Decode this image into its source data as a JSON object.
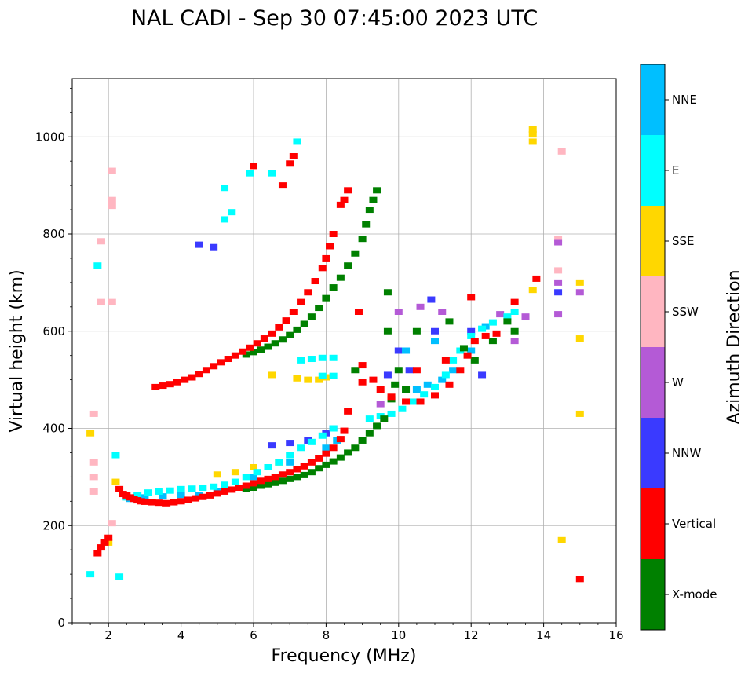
{
  "chart_data": {
    "type": "scatter",
    "title": "NAL CADI - Sep 30 07:45:00 2023 UTC",
    "xlabel": "Frequency (MHz)",
    "ylabel": "Virtual height (km)",
    "xlim": [
      1,
      16
    ],
    "ylim": [
      0,
      1120
    ],
    "xticks": [
      2,
      4,
      6,
      8,
      10,
      12,
      14,
      16
    ],
    "yticks": [
      0,
      200,
      400,
      600,
      800,
      1000
    ],
    "grid": true,
    "colorbar": {
      "label": "Azimuth Direction",
      "categories": [
        {
          "name": "X-mode",
          "color": "#008000"
        },
        {
          "name": "Vertical",
          "color": "#ff0000"
        },
        {
          "name": "NNW",
          "color": "#3a3aff"
        },
        {
          "name": "W",
          "color": "#b45ad6"
        },
        {
          "name": "SSW",
          "color": "#ffb6c1"
        },
        {
          "name": "SSE",
          "color": "#ffd700"
        },
        {
          "name": "E",
          "color": "#00ffff"
        },
        {
          "name": "NNE",
          "color": "#00bfff"
        }
      ]
    },
    "series": [
      {
        "name": "Vertical",
        "points": [
          [
            2.3,
            275
          ],
          [
            2.4,
            265
          ],
          [
            2.5,
            262
          ],
          [
            2.6,
            258
          ],
          [
            2.7,
            255
          ],
          [
            2.8,
            252
          ],
          [
            2.9,
            250
          ],
          [
            3.0,
            249
          ],
          [
            3.2,
            248
          ],
          [
            3.4,
            247
          ],
          [
            3.6,
            246
          ],
          [
            3.8,
            248
          ],
          [
            4.0,
            250
          ],
          [
            4.2,
            253
          ],
          [
            4.4,
            256
          ],
          [
            4.6,
            259
          ],
          [
            4.8,
            262
          ],
          [
            5.0,
            266
          ],
          [
            5.2,
            270
          ],
          [
            5.4,
            274
          ],
          [
            5.6,
            278
          ],
          [
            5.8,
            282
          ],
          [
            6.0,
            287
          ],
          [
            6.2,
            292
          ],
          [
            6.4,
            296
          ],
          [
            6.6,
            300
          ],
          [
            6.8,
            305
          ],
          [
            7.0,
            310
          ],
          [
            7.2,
            316
          ],
          [
            7.4,
            322
          ],
          [
            7.6,
            330
          ],
          [
            7.8,
            338
          ],
          [
            8.0,
            348
          ],
          [
            8.2,
            360
          ],
          [
            8.4,
            378
          ],
          [
            8.5,
            395
          ],
          [
            8.6,
            435
          ],
          [
            3.3,
            485
          ],
          [
            3.5,
            488
          ],
          [
            3.7,
            491
          ],
          [
            3.9,
            495
          ],
          [
            4.1,
            500
          ],
          [
            4.3,
            505
          ],
          [
            4.5,
            512
          ],
          [
            4.7,
            520
          ],
          [
            4.9,
            528
          ],
          [
            5.1,
            536
          ],
          [
            5.3,
            543
          ],
          [
            5.5,
            550
          ],
          [
            5.7,
            558
          ],
          [
            5.9,
            566
          ],
          [
            6.1,
            575
          ],
          [
            6.3,
            585
          ],
          [
            6.5,
            595
          ],
          [
            6.7,
            608
          ],
          [
            6.9,
            622
          ],
          [
            7.1,
            640
          ],
          [
            7.3,
            660
          ],
          [
            7.5,
            680
          ],
          [
            7.7,
            703
          ],
          [
            7.9,
            730
          ],
          [
            8.0,
            750
          ],
          [
            8.1,
            775
          ],
          [
            8.2,
            800
          ],
          [
            8.4,
            860
          ],
          [
            8.5,
            870
          ],
          [
            8.6,
            890
          ],
          [
            6.8,
            900
          ],
          [
            7.1,
            960
          ],
          [
            6.0,
            940
          ],
          [
            7.0,
            945
          ],
          [
            9.0,
            495
          ],
          [
            9.3,
            500
          ],
          [
            9.8,
            465
          ],
          [
            10.2,
            455
          ],
          [
            10.6,
            455
          ],
          [
            11.0,
            468
          ],
          [
            11.4,
            490
          ],
          [
            11.7,
            520
          ],
          [
            11.9,
            550
          ],
          [
            12.1,
            580
          ],
          [
            12.4,
            590
          ],
          [
            12.7,
            595
          ],
          [
            12.0,
            670
          ],
          [
            13.2,
            660
          ],
          [
            13.8,
            708
          ],
          [
            15.0,
            90
          ],
          [
            1.8,
            155
          ],
          [
            1.9,
            165
          ],
          [
            2.0,
            175
          ],
          [
            1.7,
            143
          ],
          [
            9.0,
            530
          ],
          [
            8.9,
            640
          ],
          [
            9.5,
            480
          ],
          [
            10.5,
            520
          ],
          [
            11.3,
            540
          ]
        ]
      },
      {
        "name": "X-mode",
        "points": [
          [
            5.8,
            275
          ],
          [
            6.0,
            278
          ],
          [
            6.2,
            282
          ],
          [
            6.4,
            285
          ],
          [
            6.6,
            288
          ],
          [
            6.8,
            292
          ],
          [
            7.0,
            296
          ],
          [
            7.2,
            300
          ],
          [
            7.4,
            304
          ],
          [
            7.6,
            310
          ],
          [
            7.8,
            318
          ],
          [
            8.0,
            325
          ],
          [
            8.2,
            332
          ],
          [
            8.4,
            340
          ],
          [
            8.6,
            350
          ],
          [
            8.8,
            360
          ],
          [
            9.0,
            375
          ],
          [
            9.2,
            390
          ],
          [
            9.4,
            405
          ],
          [
            9.6,
            420
          ],
          [
            5.8,
            552
          ],
          [
            6.0,
            557
          ],
          [
            6.2,
            562
          ],
          [
            6.4,
            568
          ],
          [
            6.6,
            575
          ],
          [
            6.8,
            583
          ],
          [
            7.0,
            592
          ],
          [
            7.2,
            603
          ],
          [
            7.4,
            615
          ],
          [
            7.6,
            630
          ],
          [
            7.8,
            648
          ],
          [
            8.0,
            668
          ],
          [
            8.2,
            690
          ],
          [
            8.4,
            710
          ],
          [
            8.6,
            735
          ],
          [
            8.8,
            760
          ],
          [
            9.0,
            790
          ],
          [
            9.1,
            820
          ],
          [
            9.2,
            850
          ],
          [
            9.3,
            870
          ],
          [
            9.4,
            890
          ],
          [
            9.8,
            460
          ],
          [
            10.0,
            520
          ],
          [
            9.7,
            600
          ],
          [
            9.7,
            680
          ],
          [
            10.5,
            600
          ],
          [
            11.4,
            620
          ],
          [
            11.8,
            565
          ],
          [
            12.1,
            540
          ],
          [
            13.0,
            620
          ],
          [
            13.2,
            600
          ],
          [
            12.6,
            580
          ],
          [
            10.2,
            480
          ],
          [
            9.9,
            490
          ],
          [
            8.8,
            520
          ]
        ]
      },
      {
        "name": "E",
        "points": [
          [
            2.5,
            258
          ],
          [
            2.8,
            262
          ],
          [
            3.1,
            268
          ],
          [
            3.4,
            270
          ],
          [
            3.7,
            272
          ],
          [
            4.0,
            275
          ],
          [
            4.3,
            276
          ],
          [
            4.6,
            278
          ],
          [
            4.9,
            280
          ],
          [
            5.2,
            284
          ],
          [
            5.5,
            290
          ],
          [
            5.8,
            300
          ],
          [
            6.1,
            310
          ],
          [
            6.4,
            320
          ],
          [
            6.7,
            330
          ],
          [
            7.0,
            345
          ],
          [
            7.3,
            360
          ],
          [
            7.6,
            372
          ],
          [
            7.9,
            385
          ],
          [
            8.2,
            400
          ],
          [
            7.3,
            540
          ],
          [
            7.6,
            543
          ],
          [
            7.9,
            545
          ],
          [
            8.2,
            545
          ],
          [
            7.9,
            508
          ],
          [
            8.2,
            508
          ],
          [
            9.2,
            420
          ],
          [
            9.5,
            425
          ],
          [
            9.8,
            430
          ],
          [
            10.1,
            440
          ],
          [
            10.4,
            455
          ],
          [
            10.7,
            470
          ],
          [
            11.0,
            485
          ],
          [
            11.3,
            510
          ],
          [
            11.5,
            540
          ],
          [
            11.7,
            560
          ],
          [
            12.0,
            590
          ],
          [
            12.3,
            605
          ],
          [
            12.6,
            618
          ],
          [
            13.0,
            630
          ],
          [
            13.2,
            640
          ],
          [
            5.2,
            830
          ],
          [
            5.4,
            845
          ],
          [
            5.9,
            925
          ],
          [
            6.5,
            925
          ],
          [
            7.2,
            990
          ],
          [
            5.2,
            895
          ],
          [
            1.5,
            100
          ],
          [
            2.3,
            95
          ],
          [
            1.7,
            735
          ],
          [
            2.2,
            345
          ]
        ]
      },
      {
        "name": "NNE",
        "points": [
          [
            2.6,
            255
          ],
          [
            3.0,
            258
          ],
          [
            3.5,
            260
          ],
          [
            4.0,
            263
          ],
          [
            4.5,
            262
          ],
          [
            5.0,
            270
          ],
          [
            6.0,
            300
          ],
          [
            7.0,
            330
          ],
          [
            8.0,
            360
          ],
          [
            8.3,
            375
          ],
          [
            10.5,
            480
          ],
          [
            10.8,
            490
          ],
          [
            11.2,
            500
          ],
          [
            11.5,
            520
          ],
          [
            12.0,
            560
          ],
          [
            11.0,
            580
          ],
          [
            10.2,
            560
          ],
          [
            12.4,
            610
          ]
        ]
      },
      {
        "name": "NNW",
        "points": [
          [
            6.5,
            365
          ],
          [
            7.0,
            370
          ],
          [
            7.5,
            375
          ],
          [
            8.0,
            390
          ],
          [
            8.2,
            400
          ],
          [
            4.5,
            778
          ],
          [
            4.9,
            773
          ],
          [
            9.7,
            510
          ],
          [
            10.3,
            520
          ],
          [
            10.0,
            560
          ],
          [
            12.3,
            510
          ],
          [
            11.0,
            600
          ],
          [
            10.9,
            665
          ],
          [
            14.4,
            680
          ],
          [
            12.0,
            600
          ]
        ]
      },
      {
        "name": "W",
        "points": [
          [
            14.4,
            635
          ],
          [
            14.4,
            700
          ],
          [
            14.4,
            783
          ],
          [
            15.0,
            680
          ],
          [
            13.2,
            580
          ],
          [
            9.5,
            450
          ],
          [
            10.0,
            640
          ],
          [
            10.6,
            650
          ],
          [
            11.2,
            640
          ],
          [
            12.8,
            635
          ],
          [
            13.5,
            630
          ]
        ]
      },
      {
        "name": "SSW",
        "points": [
          [
            1.6,
            270
          ],
          [
            1.6,
            300
          ],
          [
            1.6,
            330
          ],
          [
            1.8,
            785
          ],
          [
            1.8,
            660
          ],
          [
            2.1,
            660
          ],
          [
            2.1,
            858
          ],
          [
            2.1,
            870
          ],
          [
            2.1,
            930
          ],
          [
            1.6,
            430
          ],
          [
            2.1,
            205
          ],
          [
            14.5,
            970
          ],
          [
            14.4,
            790
          ],
          [
            14.4,
            725
          ]
        ]
      },
      {
        "name": "SSE",
        "points": [
          [
            2.2,
            290
          ],
          [
            2.0,
            165
          ],
          [
            5.0,
            305
          ],
          [
            5.5,
            310
          ],
          [
            6.0,
            320
          ],
          [
            6.7,
            330
          ],
          [
            6.5,
            510
          ],
          [
            7.2,
            503
          ],
          [
            7.5,
            500
          ],
          [
            7.8,
            500
          ],
          [
            8.0,
            505
          ],
          [
            13.7,
            1015
          ],
          [
            13.7,
            1005
          ],
          [
            13.7,
            990
          ],
          [
            13.7,
            685
          ],
          [
            15.0,
            700
          ],
          [
            15.0,
            585
          ],
          [
            15.0,
            430
          ],
          [
            14.5,
            170
          ],
          [
            1.5,
            390
          ]
        ]
      }
    ]
  }
}
